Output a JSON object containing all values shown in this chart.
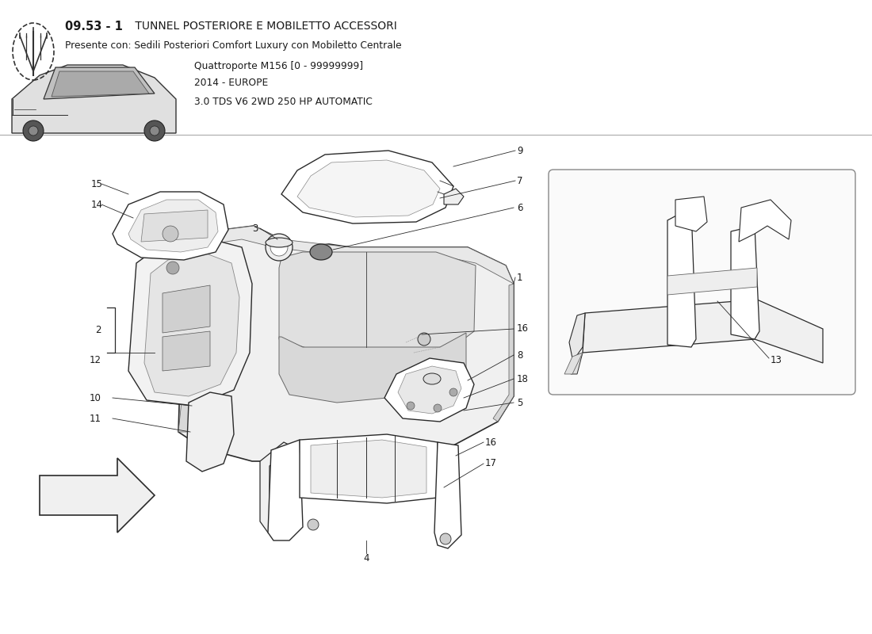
{
  "title_bold": "09.53 - 1",
  "title_rest": " TUNNEL POSTERIORE E MOBILETTO ACCESSORI",
  "subtitle1": "Presente con: Sedili Posteriori Comfort Luxury con Mobiletto Centrale",
  "subtitle2": "Quattroporte M156 [0 - 99999999]",
  "subtitle3": "2014 - EUROPE",
  "subtitle4": "3.0 TDS V6 2WD 250 HP AUTOMATIC",
  "bg_color": "#ffffff",
  "lc": "#2a2a2a",
  "tc": "#1a1a1a",
  "fig_width": 11.0,
  "fig_height": 8.0
}
